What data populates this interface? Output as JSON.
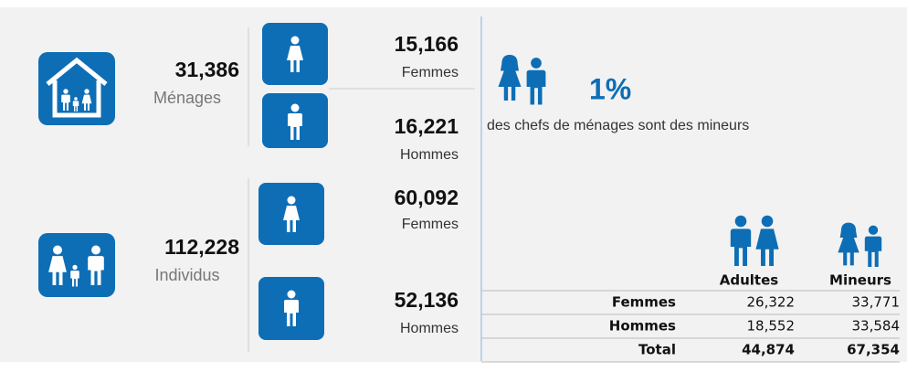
{
  "households": {
    "total": "31,386",
    "label": "Ménages",
    "women": {
      "value": "15,166",
      "label": "Femmes"
    },
    "men": {
      "value": "16,221",
      "label": "Hommes"
    }
  },
  "individuals": {
    "total": "112,228",
    "label": "Individus",
    "women": {
      "value": "60,092",
      "label": "Femmes"
    },
    "men": {
      "value": "52,136",
      "label": "Hommes"
    }
  },
  "minor_heads": {
    "value": "1%",
    "text": "des chefs de ménages sont des mineurs"
  },
  "table": {
    "headers": [
      "Adultes",
      "Mineurs"
    ],
    "rows": [
      [
        "Femmes",
        "26,322",
        "33,771"
      ],
      [
        "Hommes",
        "18,552",
        "33,584"
      ],
      [
        "Total",
        "44,874",
        "67,354"
      ]
    ]
  }
}
